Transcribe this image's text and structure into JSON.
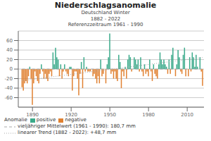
{
  "chart_data": {
    "type": "bar",
    "title": "Niederschlagsanomalie",
    "subtitle": [
      "Deutschland Winter",
      "1882 - 2022",
      "Referenzzeitraum 1961 - 1990"
    ],
    "annotations": [
      "Anomalie"
    ],
    "x": [
      1882,
      1883,
      1884,
      1885,
      1886,
      1887,
      1888,
      1889,
      1890,
      1891,
      1892,
      1893,
      1894,
      1895,
      1896,
      1897,
      1898,
      1899,
      1900,
      1901,
      1902,
      1903,
      1904,
      1905,
      1906,
      1907,
      1908,
      1909,
      1910,
      1911,
      1912,
      1913,
      1914,
      1915,
      1916,
      1917,
      1918,
      1919,
      1920,
      1921,
      1922,
      1923,
      1924,
      1925,
      1926,
      1927,
      1928,
      1929,
      1930,
      1931,
      1932,
      1933,
      1934,
      1935,
      1936,
      1937,
      1938,
      1939,
      1940,
      1941,
      1942,
      1943,
      1944,
      1945,
      1946,
      1947,
      1948,
      1949,
      1950,
      1951,
      1952,
      1953,
      1954,
      1955,
      1956,
      1957,
      1958,
      1959,
      1960,
      1961,
      1962,
      1963,
      1964,
      1965,
      1966,
      1967,
      1968,
      1969,
      1970,
      1971,
      1972,
      1973,
      1974,
      1975,
      1976,
      1977,
      1978,
      1979,
      1980,
      1981,
      1982,
      1983,
      1984,
      1985,
      1986,
      1987,
      1988,
      1989,
      1990,
      1991,
      1992,
      1993,
      1994,
      1995,
      1996,
      1997,
      1998,
      1999,
      2000,
      2001,
      2002,
      2003,
      2004,
      2005,
      2006,
      2007,
      2008,
      2009,
      2010,
      2011,
      2012,
      2013,
      2014,
      2015,
      2016,
      2017,
      2018,
      2019,
      2020,
      2021,
      2022
    ],
    "series": [
      {
        "name": "positive",
        "type": "bar",
        "color": "#3aaa8a",
        "values": [
          null,
          null,
          null,
          null,
          null,
          null,
          5,
          null,
          null,
          null,
          null,
          null,
          null,
          null,
          null,
          10,
          null,
          null,
          null,
          null,
          null,
          null,
          null,
          null,
          35,
          10,
          45,
          25,
          20,
          null,
          10,
          null,
          null,
          10,
          null,
          null,
          null,
          5,
          5,
          null,
          null,
          null,
          null,
          null,
          null,
          null,
          15,
          null,
          25,
          null,
          5,
          null,
          null,
          null,
          0,
          null,
          null,
          null,
          null,
          null,
          null,
          20,
          null,
          null,
          0,
          null,
          10,
          25,
          75,
          null,
          null,
          null,
          null,
          null,
          null,
          30,
          15,
          null,
          null,
          null,
          5,
          null,
          20,
          30,
          25,
          null,
          0,
          25,
          20,
          10,
          20,
          null,
          25,
          null,
          null,
          10,
          null,
          null,
          null,
          20,
          null,
          null,
          10,
          null,
          null,
          null,
          10,
          35,
          20,
          10,
          20,
          10,
          5,
          null,
          20,
          null,
          30,
          45,
          0,
          null,
          10,
          40,
          25,
          null,
          null,
          30,
          45,
          null,
          0,
          null,
          25,
          null,
          35,
          25,
          5,
          30,
          5,
          0,
          25,
          null,
          null
        ]
      },
      {
        "name": "negative",
        "type": "bar",
        "color": "#e08030",
        "values": [
          -38,
          -45,
          -30,
          -25,
          -30,
          -15,
          null,
          -20,
          -75,
          -30,
          -5,
          -15,
          -25,
          -30,
          -10,
          null,
          -5,
          -20,
          -10,
          -20,
          -25,
          -10,
          -5,
          -15,
          null,
          null,
          null,
          null,
          null,
          -15,
          null,
          -20,
          -5,
          null,
          -5,
          -10,
          -15,
          null,
          null,
          -45,
          -15,
          -5,
          -5,
          -20,
          -55,
          -10,
          null,
          -40,
          null,
          -5,
          null,
          -5,
          -5,
          -5,
          null,
          -15,
          -10,
          -20,
          -30,
          -15,
          -30,
          null,
          -15,
          -10,
          null,
          -30,
          null,
          null,
          null,
          -10,
          -5,
          -20,
          -5,
          -20,
          -25,
          null,
          null,
          -40,
          -5,
          -15,
          null,
          -20,
          null,
          null,
          null,
          -5,
          null,
          null,
          null,
          null,
          null,
          -5,
          null,
          -5,
          -15,
          null,
          -10,
          -5,
          -15,
          null,
          -5,
          -25,
          null,
          -10,
          -15,
          -20,
          null,
          null,
          null,
          null,
          null,
          null,
          null,
          -10,
          null,
          -10,
          null,
          null,
          null,
          -15,
          null,
          null,
          null,
          -5,
          -10,
          null,
          null,
          -15,
          null,
          -15,
          null,
          -5,
          null,
          null,
          null,
          null,
          null,
          null,
          null,
          -5,
          -35
        ]
      },
      {
        "name": "vieljähriger Mittelwert (1961 - 1990): 180,7 mm",
        "type": "line",
        "color": "#aaaaaa",
        "line_style": "dashed",
        "values": [
          0,
          null,
          null,
          null,
          null,
          null,
          null,
          null,
          null,
          null,
          null,
          null,
          null,
          null,
          null,
          null,
          null,
          null,
          null,
          null,
          null,
          null,
          null,
          null,
          null,
          null,
          null,
          null,
          null,
          null,
          null,
          null,
          null,
          null,
          null,
          null,
          null,
          null,
          null,
          null,
          null,
          null,
          null,
          null,
          null,
          null,
          null,
          null,
          null,
          null,
          null,
          null,
          null,
          null,
          null,
          null,
          null,
          null,
          null,
          null,
          null,
          null,
          null,
          null,
          null,
          null,
          null,
          null,
          null,
          null,
          null,
          null,
          null,
          null,
          null,
          null,
          null,
          null,
          null,
          null,
          null,
          null,
          null,
          null,
          null,
          null,
          null,
          null,
          null,
          null,
          null,
          null,
          null,
          null,
          null,
          null,
          null,
          null,
          null,
          null,
          null,
          null,
          null,
          null,
          null,
          null,
          null,
          null,
          null,
          null,
          null,
          null,
          null,
          null,
          null,
          null,
          null,
          null,
          null,
          null,
          null,
          null,
          null,
          null,
          null,
          null,
          null,
          null,
          null,
          null,
          null,
          null,
          null,
          null,
          null,
          null,
          null,
          null,
          null,
          null,
          0
        ]
      },
      {
        "name": "linearer Trend (1882 - 2022): +48,7 mm",
        "type": "line",
        "color": "#aaaaaa",
        "line_style": "dotted",
        "values": [
          -24.35,
          null,
          null,
          null,
          null,
          null,
          null,
          null,
          null,
          null,
          null,
          null,
          null,
          null,
          null,
          null,
          null,
          null,
          null,
          null,
          null,
          null,
          null,
          null,
          null,
          null,
          null,
          null,
          null,
          null,
          null,
          null,
          null,
          null,
          null,
          null,
          null,
          null,
          null,
          null,
          null,
          null,
          null,
          null,
          null,
          null,
          null,
          null,
          null,
          null,
          null,
          null,
          null,
          null,
          null,
          null,
          null,
          null,
          null,
          null,
          null,
          null,
          null,
          null,
          null,
          null,
          null,
          null,
          null,
          null,
          null,
          null,
          null,
          null,
          null,
          null,
          null,
          null,
          null,
          null,
          null,
          null,
          null,
          null,
          null,
          null,
          null,
          null,
          null,
          null,
          null,
          null,
          null,
          null,
          null,
          null,
          null,
          null,
          null,
          null,
          null,
          null,
          null,
          null,
          null,
          null,
          null,
          null,
          null,
          null,
          null,
          null,
          null,
          null,
          null,
          null,
          null,
          null,
          null,
          null,
          null,
          null,
          null,
          null,
          null,
          null,
          null,
          null,
          null,
          null,
          null,
          null,
          null,
          null,
          null,
          null,
          null,
          null,
          null,
          null,
          24.35
        ]
      }
    ],
    "xlim": [
      1879,
      2023
    ],
    "xticks": [
      1890,
      1920,
      1950,
      1980,
      2010
    ],
    "ylim": [
      -80,
      80
    ],
    "yticks": [
      -60,
      -40,
      -20,
      0,
      20,
      40,
      60
    ],
    "grid": true,
    "legend": "bottom"
  }
}
